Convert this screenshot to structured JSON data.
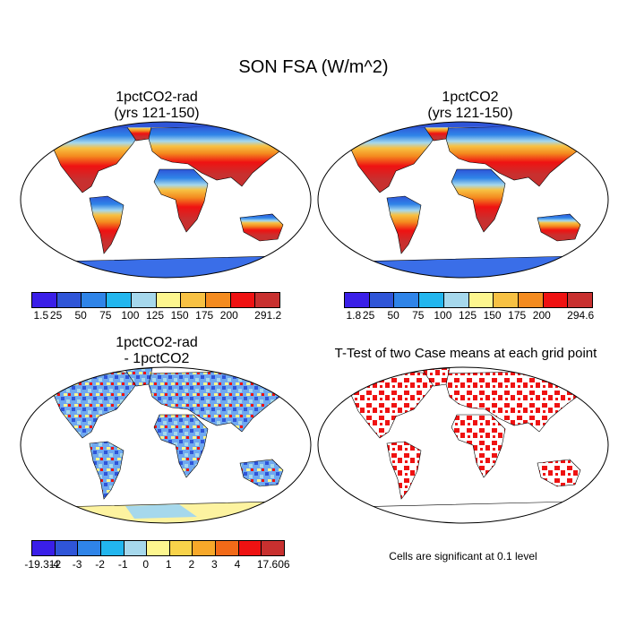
{
  "title": "SON FSA (W/m^2)",
  "panels": {
    "p1": {
      "line1": "1pctCO2-rad",
      "line2": "(yrs 121-150)"
    },
    "p2": {
      "line1": "1pctCO2",
      "line2": "(yrs 121-150)"
    },
    "p3": {
      "line1": "1pctCO2-rad",
      "line2": "- 1pctCO2"
    },
    "p4": {
      "line1": "T-Test of two Case means at each grid point"
    }
  },
  "colorbars": {
    "cb1": {
      "labels": [
        "1.5",
        "25",
        "50",
        "75",
        "100",
        "125",
        "150",
        "175",
        "200",
        "291.2"
      ],
      "colors": [
        "#3a1fe8",
        "#2f55d8",
        "#2f84e8",
        "#22b6ee",
        "#a6d8ec",
        "#fdf68f",
        "#f7c143",
        "#f48b1f",
        "#ef1212",
        "#c8302f"
      ]
    },
    "cb2": {
      "labels": [
        "1.8",
        "25",
        "50",
        "75",
        "100",
        "125",
        "150",
        "175",
        "200",
        "294.6"
      ],
      "colors": [
        "#3a1fe8",
        "#2f55d8",
        "#2f84e8",
        "#22b6ee",
        "#a6d8ec",
        "#fdf68f",
        "#f7c143",
        "#f48b1f",
        "#ef1212",
        "#c8302f"
      ]
    },
    "cb3": {
      "labels": [
        "-19.312",
        "-4",
        "-3",
        "-2",
        "-1",
        "0",
        "1",
        "2",
        "3",
        "4",
        "17.606"
      ],
      "colors": [
        "#3a1fe8",
        "#2f55d8",
        "#2f84e8",
        "#22b6ee",
        "#a6d8ec",
        "#fdf68f",
        "#f8d34a",
        "#f7a82a",
        "#f26a18",
        "#ef1212",
        "#c8302f"
      ]
    }
  },
  "note": "Cells are significant at 0.1 level"
}
